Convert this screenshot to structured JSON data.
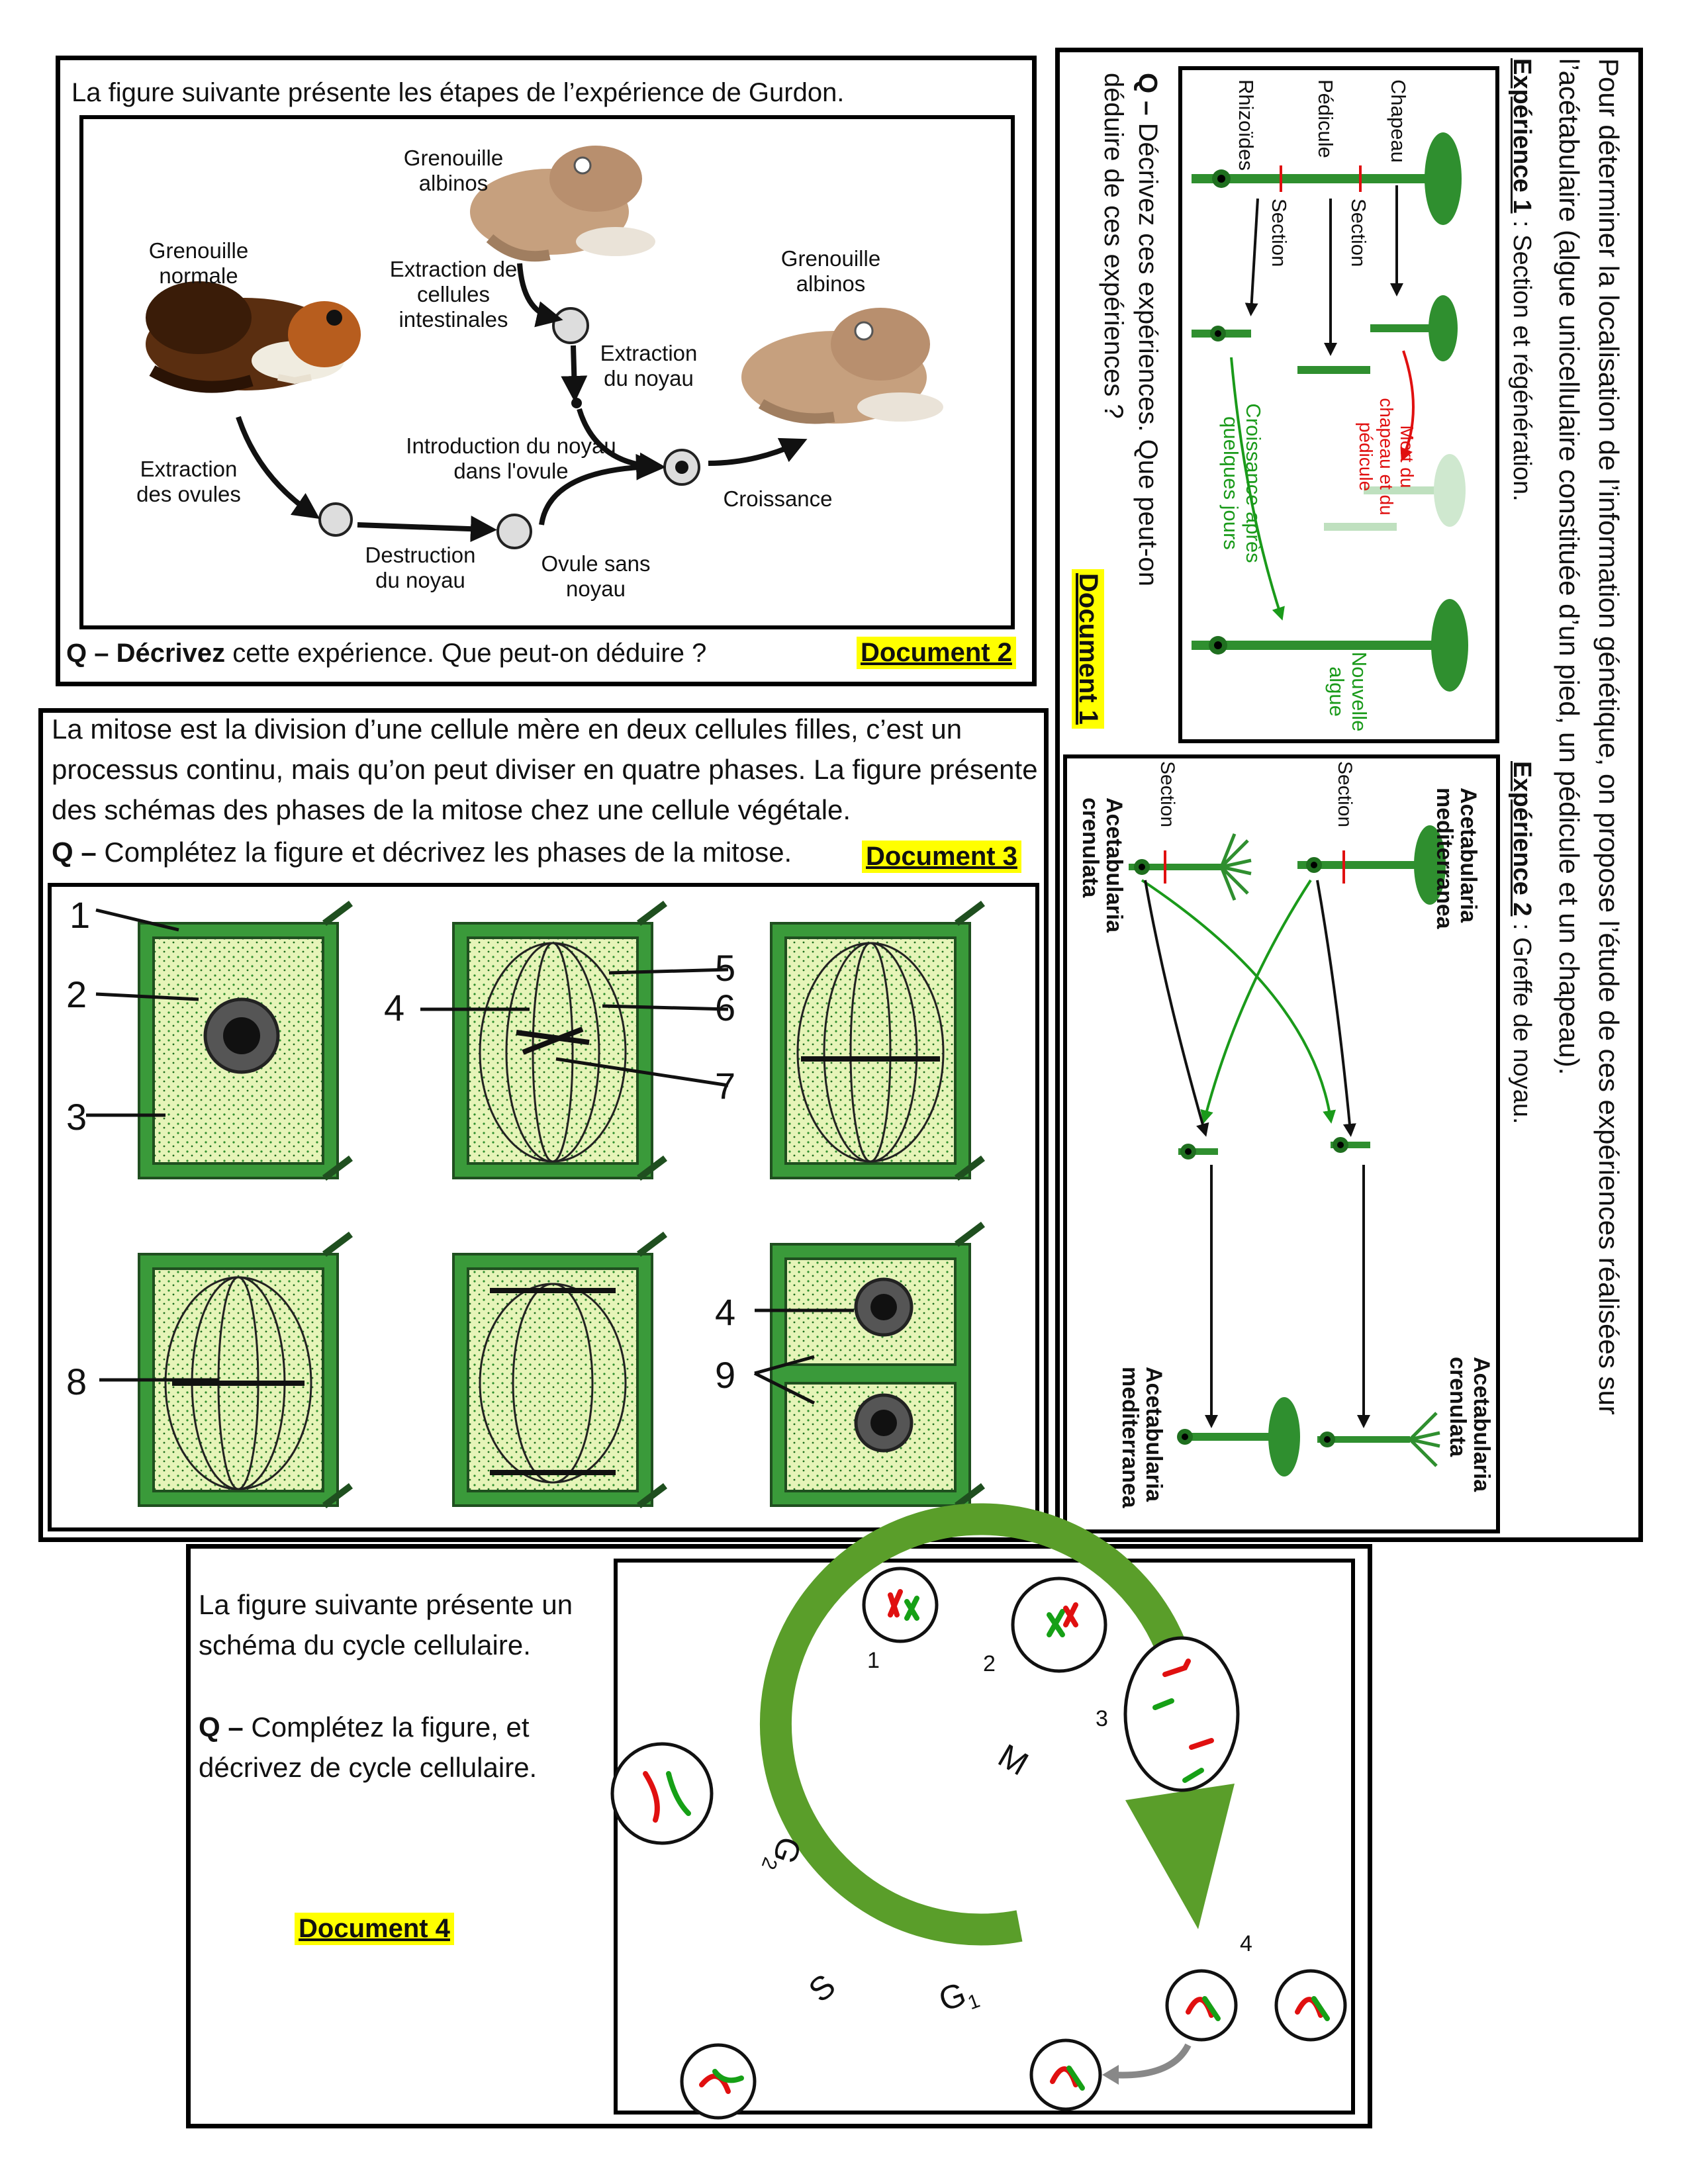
{
  "colors": {
    "highlight": "#ffff00",
    "plant_green": "#2f8f2f",
    "cell_fill": "#e6f4b8",
    "red": "#e01010",
    "bright_green": "#16a016"
  },
  "doc2": {
    "intro": "La figure suivante présente les étapes de l’expérience de Gurdon.",
    "labels": {
      "frog_normal": "Grenouille normale",
      "frog_albino_top": "Grenouille albinos",
      "frog_albino_result": "Grenouille albinos",
      "extract_intestinal": "Extraction de cellules intestinales",
      "extract_nucleus": "Extraction du noyau",
      "extract_ovules": "Extraction des ovules",
      "introduction": "Introduction du noyau dans l'ovule",
      "destruction": "Destruction du noyau",
      "ovule_sans": "Ovule sans noyau",
      "croissance": "Croissance"
    },
    "q_prefix": "Q –",
    "q_bold": "Décrivez",
    "q_rest": "cette expérience. Que peut-on déduire ?",
    "tag": "Document 2"
  },
  "doc1": {
    "intro": "Pour déterminer la localisation de l’information génétique, on propose l’étude de ces expériences réalisées sur l’acétabulaire (algue unicellulaire constituée d’un pied, un pédicule et un chapeau).",
    "exp1_title": "Expérience 1",
    "exp1_rest": " : Section et régénération.",
    "labels": {
      "chapeau": "Chapeau",
      "pedicule": "Pédicule",
      "rhizoides": "Rhizoïdes",
      "section": "Section",
      "mort": "Mort du chapeau et du pédicule",
      "croissance": "Croissance après quelques jours",
      "nouvelle": "Nouvelle algue"
    },
    "q_prefix": "Q –",
    "q_text": "Décrivez ces expériences. Que peut-on déduire de ces expériences ?",
    "tag": "Document 1",
    "exp2_title": "Expérience 2",
    "exp2_rest": " : Greffe de noyau.",
    "exp2": {
      "med": "Acetabularia mediterranea",
      "cren": "Acetabularia crenulata",
      "section": "Section"
    }
  },
  "doc3": {
    "intro": "La mitose est la division d’une cellule mère en deux cellules filles, c’est un processus continu, mais qu’on peut diviser en quatre phases. La figure présente des schémas des phases de la mitose chez une cellule végétale.",
    "q_prefix": "Q –",
    "q_text": "Complétez la figure et décrivez les phases de la mitose.",
    "tag": "Document 3",
    "numbers": [
      "1",
      "2",
      "3",
      "4",
      "5",
      "6",
      "7",
      "8",
      "4",
      "9"
    ]
  },
  "doc4": {
    "intro": "La figure suivante présente un schéma du cycle cellulaire.",
    "q_prefix": "Q –",
    "q_text": "Complétez la figure, et décrivez de cycle cellulaire.",
    "tag": "Document 4",
    "phases": {
      "M": "M",
      "G2": "G",
      "G2_sub": "2",
      "S": "S",
      "G1": "G",
      "G1_sub": "1"
    },
    "numbers": [
      "1",
      "2",
      "3",
      "4"
    ]
  }
}
